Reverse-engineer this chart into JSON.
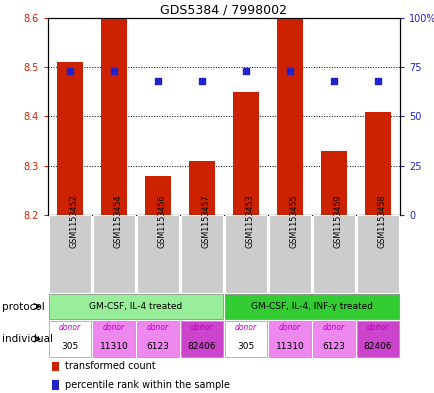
{
  "title": "GDS5384 / 7998002",
  "samples": [
    "GSM1153452",
    "GSM1153454",
    "GSM1153456",
    "GSM1153457",
    "GSM1153453",
    "GSM1153455",
    "GSM1153459",
    "GSM1153458"
  ],
  "bar_values": [
    8.51,
    8.6,
    8.28,
    8.31,
    8.45,
    8.6,
    8.33,
    8.41
  ],
  "bar_base": 8.2,
  "percentile_values": [
    0.73,
    0.73,
    0.68,
    0.68,
    0.73,
    0.73,
    0.68,
    0.68
  ],
  "ylim": [
    8.2,
    8.6
  ],
  "y2lim": [
    0,
    1.0
  ],
  "yticks": [
    8.2,
    8.3,
    8.4,
    8.5,
    8.6
  ],
  "y2ticks": [
    0,
    0.25,
    0.5,
    0.75,
    1.0
  ],
  "y2ticklabels": [
    "0",
    "25",
    "50",
    "75",
    "100%"
  ],
  "bar_color": "#cc2200",
  "dot_color": "#2222cc",
  "protocols": [
    {
      "label": "GM-CSF, IL-4 treated",
      "start": 0,
      "end": 4,
      "color": "#99ee99"
    },
    {
      "label": "GM-CSF, IL-4, INF-γ treated",
      "start": 4,
      "end": 8,
      "color": "#33cc33"
    }
  ],
  "ind_colors": [
    "#ffffff",
    "#ee88ee",
    "#ee88ee",
    "#cc44cc",
    "#ffffff",
    "#ee88ee",
    "#ee88ee",
    "#cc44cc"
  ],
  "ind_numbers": [
    "305",
    "11310",
    "6123",
    "82406",
    "305",
    "11310",
    "6123",
    "82406"
  ],
  "ytick_color": "#cc2200",
  "y2tick_color": "#2222cc",
  "label_row_color": "#cccccc",
  "protocol_label": "protocol",
  "individual_label": "individual"
}
